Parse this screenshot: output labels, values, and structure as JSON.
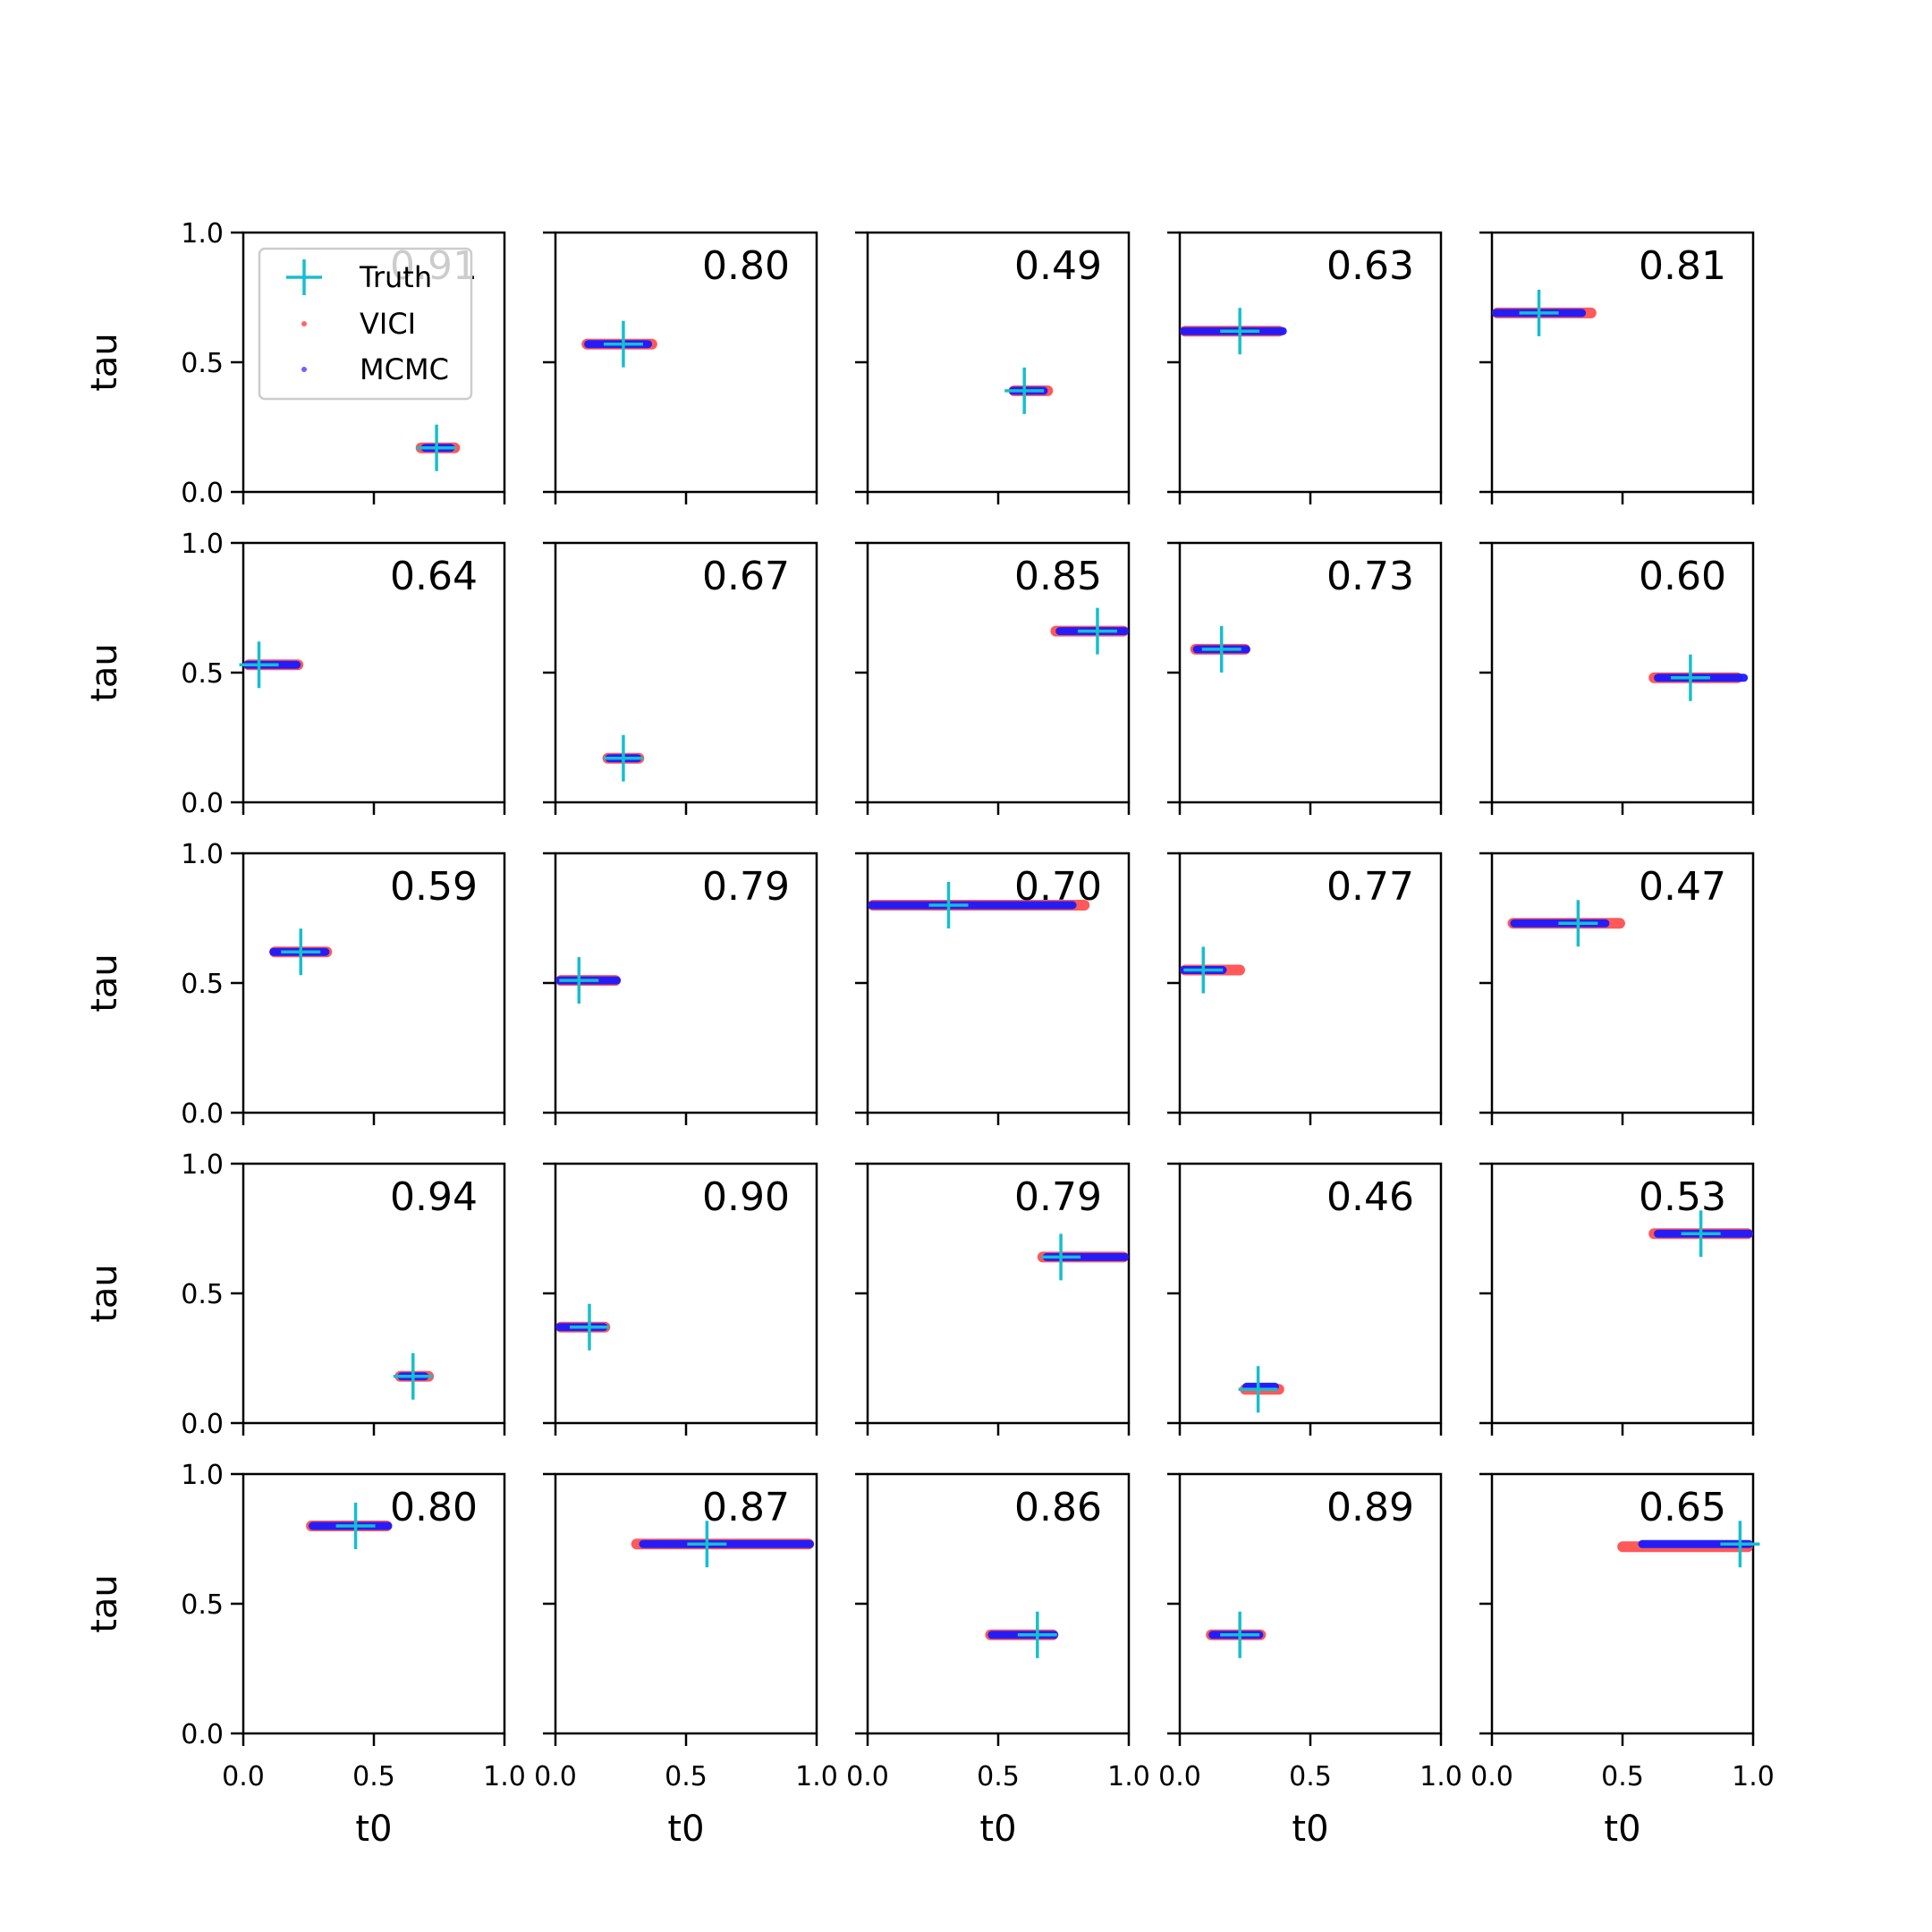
{
  "chart_data": {
    "type": "scatter",
    "layout": {
      "rows": 5,
      "cols": 5
    },
    "xlabel": "t0",
    "ylabel": "tau",
    "xlim": [
      0,
      1
    ],
    "ylim": [
      0,
      1
    ],
    "xticks": [
      "0.0",
      "0.5",
      "1.0"
    ],
    "yticks": [
      "0.0",
      "0.5",
      "1.0"
    ],
    "grid": false,
    "legend": {
      "location": "top-left",
      "panel": 0,
      "entries": [
        {
          "label": "Truth",
          "marker": "cross",
          "color": "#17becf"
        },
        {
          "label": "VICI",
          "marker": "dot",
          "color": "#ff0000"
        },
        {
          "label": "MCMC",
          "marker": "dot",
          "color": "#0000ff"
        }
      ]
    },
    "panels": [
      {
        "value": "0.91",
        "truth": [
          0.74,
          0.17
        ],
        "vici": [
          0.66,
          0.83,
          0.17
        ],
        "mcmc": [
          0.68,
          0.81,
          0.17
        ]
      },
      {
        "value": "0.80",
        "truth": [
          0.26,
          0.57
        ],
        "vici": [
          0.1,
          0.39,
          0.57
        ],
        "mcmc": [
          0.11,
          0.37,
          0.57
        ]
      },
      {
        "value": "0.49",
        "truth": [
          0.6,
          0.39
        ],
        "vici": [
          0.54,
          0.71,
          0.39
        ],
        "mcmc": [
          0.54,
          0.69,
          0.39
        ]
      },
      {
        "value": "0.63",
        "truth": [
          0.23,
          0.62
        ],
        "vici": [
          0.0,
          0.4,
          0.62
        ],
        "mcmc": [
          0.0,
          0.41,
          0.62
        ]
      },
      {
        "value": "0.81",
        "truth": [
          0.18,
          0.69
        ],
        "vici": [
          0.0,
          0.4,
          0.69
        ],
        "mcmc": [
          0.0,
          0.36,
          0.69
        ]
      },
      {
        "value": "0.64",
        "truth": [
          0.06,
          0.53
        ],
        "vici": [
          0.0,
          0.23,
          0.53
        ],
        "mcmc": [
          0.0,
          0.22,
          0.53
        ]
      },
      {
        "value": "0.67",
        "truth": [
          0.26,
          0.17
        ],
        "vici": [
          0.18,
          0.34,
          0.17
        ],
        "mcmc": [
          0.19,
          0.33,
          0.17
        ]
      },
      {
        "value": "0.85",
        "truth": [
          0.88,
          0.66
        ],
        "vici": [
          0.7,
          1.0,
          0.66
        ],
        "mcmc": [
          0.72,
          1.0,
          0.66
        ]
      },
      {
        "value": "0.73",
        "truth": [
          0.16,
          0.59
        ],
        "vici": [
          0.04,
          0.27,
          0.59
        ],
        "mcmc": [
          0.05,
          0.27,
          0.59
        ]
      },
      {
        "value": "0.60",
        "truth": [
          0.76,
          0.48
        ],
        "vici": [
          0.6,
          0.96,
          0.48
        ],
        "mcmc": [
          0.62,
          0.98,
          0.48
        ]
      },
      {
        "value": "0.59",
        "truth": [
          0.22,
          0.62
        ],
        "vici": [
          0.1,
          0.34,
          0.62
        ],
        "mcmc": [
          0.1,
          0.33,
          0.62
        ]
      },
      {
        "value": "0.79",
        "truth": [
          0.09,
          0.51
        ],
        "vici": [
          0.0,
          0.25,
          0.51
        ],
        "mcmc": [
          0.0,
          0.25,
          0.51
        ]
      },
      {
        "value": "0.70",
        "truth": [
          0.31,
          0.8
        ],
        "vici": [
          0.0,
          0.85,
          0.8
        ],
        "mcmc": [
          0.0,
          0.8,
          0.8
        ]
      },
      {
        "value": "0.77",
        "truth": [
          0.09,
          0.55
        ],
        "vici": [
          0.0,
          0.25,
          0.55
        ],
        "mcmc": [
          0.0,
          0.18,
          0.55
        ]
      },
      {
        "value": "0.47",
        "truth": [
          0.33,
          0.73
        ],
        "vici": [
          0.06,
          0.51,
          0.73
        ],
        "mcmc": [
          0.07,
          0.45,
          0.73
        ]
      },
      {
        "value": "0.94",
        "truth": [
          0.65,
          0.18
        ],
        "vici": [
          0.58,
          0.73,
          0.18
        ],
        "mcmc": [
          0.59,
          0.71,
          0.18
        ]
      },
      {
        "value": "0.90",
        "truth": [
          0.13,
          0.37
        ],
        "vici": [
          0.0,
          0.21,
          0.37
        ],
        "mcmc": [
          0.0,
          0.2,
          0.37
        ]
      },
      {
        "value": "0.79",
        "truth": [
          0.74,
          0.64
        ],
        "vici": [
          0.65,
          1.0,
          0.64
        ],
        "mcmc": [
          0.67,
          1.0,
          0.64
        ]
      },
      {
        "value": "0.46",
        "truth": [
          0.3,
          0.13
        ],
        "vici": [
          0.23,
          0.4,
          0.13
        ],
        "mcmc": [
          0.24,
          0.38,
          0.14
        ]
      },
      {
        "value": "0.53",
        "truth": [
          0.8,
          0.73
        ],
        "vici": [
          0.6,
          1.0,
          0.73
        ],
        "mcmc": [
          0.62,
          1.0,
          0.73
        ]
      },
      {
        "value": "0.80",
        "truth": [
          0.43,
          0.8
        ],
        "vici": [
          0.24,
          0.57,
          0.8
        ],
        "mcmc": [
          0.25,
          0.57,
          0.8
        ]
      },
      {
        "value": "0.87",
        "truth": [
          0.58,
          0.73
        ],
        "vici": [
          0.29,
          0.99,
          0.73
        ],
        "mcmc": [
          0.32,
          0.99,
          0.73
        ]
      },
      {
        "value": "0.86",
        "truth": [
          0.65,
          0.38
        ],
        "vici": [
          0.45,
          0.73,
          0.38
        ],
        "mcmc": [
          0.46,
          0.73,
          0.38
        ]
      },
      {
        "value": "0.89",
        "truth": [
          0.23,
          0.38
        ],
        "vici": [
          0.1,
          0.33,
          0.38
        ],
        "mcmc": [
          0.11,
          0.32,
          0.38
        ]
      },
      {
        "value": "0.65",
        "truth": [
          0.95,
          0.73
        ],
        "vici": [
          0.48,
          1.0,
          0.72
        ],
        "mcmc": [
          0.56,
          1.0,
          0.73
        ]
      }
    ]
  }
}
